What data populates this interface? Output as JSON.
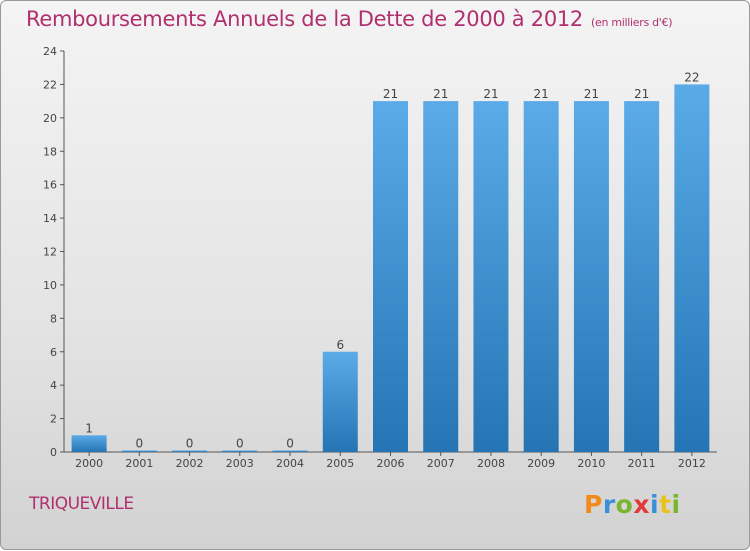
{
  "header": {
    "title": "Remboursements Annuels de la Dette de 2000 à 2012",
    "subtitle": "(en milliers d'€)"
  },
  "footer": {
    "commune": "TRIQUEVILLE",
    "brand": "Proxiti",
    "brand_colors": [
      "#f08a1c",
      "#3a8fd8",
      "#7ab52e",
      "#e23a3a",
      "#3a8fd8",
      "#e8c21c",
      "#7ab52e"
    ]
  },
  "chart_data": {
    "type": "bar",
    "categories": [
      "2000",
      "2001",
      "2002",
      "2003",
      "2004",
      "2005",
      "2006",
      "2007",
      "2008",
      "2009",
      "2010",
      "2011",
      "2012"
    ],
    "values": [
      1,
      0,
      0,
      0,
      0,
      6,
      21,
      21,
      21,
      21,
      21,
      21,
      22
    ],
    "title": "Remboursements Annuels de la Dette de 2000 à 2012",
    "subtitle": "(en milliers d'€)",
    "ylim": [
      0,
      24
    ],
    "yticks": [
      0,
      2,
      4,
      6,
      8,
      10,
      12,
      14,
      16,
      18,
      20,
      22,
      24
    ],
    "grid": false,
    "colors": {
      "bar_top": "#5aabe8",
      "bar_bottom": "#2574b4",
      "text": "#b0306f"
    }
  }
}
